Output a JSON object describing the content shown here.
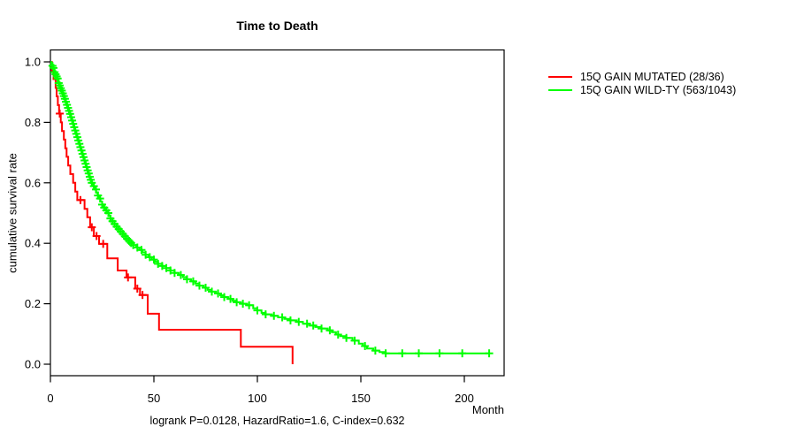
{
  "chart_data": {
    "type": "line",
    "chart_kind": "kaplan-meier-survival",
    "title": "Time to Death",
    "xlabel": "Month",
    "ylabel": "cumulative survival rate",
    "caption": "logrank P=0.0128, HazardRatio=1.6, C-index=0.632",
    "x_ticks": [
      "0",
      "50",
      "100",
      "150",
      "200"
    ],
    "y_ticks": [
      "0.0",
      "0.2",
      "0.4",
      "0.6",
      "0.8",
      "1.0"
    ],
    "xlim": [
      0,
      219
    ],
    "ylim": [
      0,
      1
    ],
    "grid": false,
    "legend_position": "right-outside",
    "legend": [
      {
        "label": "15Q GAIN MUTATED (28/36)",
        "color": "#ff0000"
      },
      {
        "label": "15Q GAIN WILD-TY (563/1043)",
        "color": "#00ff00"
      }
    ],
    "series": [
      {
        "name": "15Q GAIN MUTATED (28/36)",
        "color": "#ff0000",
        "steps": [
          [
            0,
            1.0
          ],
          [
            0.7,
            0.971
          ],
          [
            1.5,
            0.943
          ],
          [
            2.5,
            0.914
          ],
          [
            3,
            0.886
          ],
          [
            3.6,
            0.857
          ],
          [
            4.2,
            0.829
          ],
          [
            5,
            0.8
          ],
          [
            5.6,
            0.771
          ],
          [
            6.5,
            0.743
          ],
          [
            7.2,
            0.714
          ],
          [
            7.8,
            0.686
          ],
          [
            8.6,
            0.657
          ],
          [
            9.6,
            0.629
          ],
          [
            11,
            0.6
          ],
          [
            12,
            0.571
          ],
          [
            13,
            0.543
          ],
          [
            16.5,
            0.514
          ],
          [
            17.8,
            0.486
          ],
          [
            19.2,
            0.453
          ],
          [
            21,
            0.424
          ],
          [
            23.5,
            0.398
          ],
          [
            27.5,
            0.35
          ],
          [
            32.5,
            0.31
          ],
          [
            36.8,
            0.287
          ],
          [
            41,
            0.25
          ],
          [
            43.3,
            0.229
          ],
          [
            47,
            0.167
          ],
          [
            52.5,
            0.114
          ],
          [
            92,
            0.058
          ],
          [
            117,
            0
          ]
        ],
        "censor_times": [
          4.5,
          14.5,
          20,
          22.3,
          25.5,
          37.5,
          42,
          44.5
        ]
      },
      {
        "name": "15Q GAIN WILD-TY (563/1043)",
        "color": "#00ff00",
        "steps": [
          [
            0,
            1
          ],
          [
            0.4,
            0.993
          ],
          [
            0.8,
            0.987
          ],
          [
            1.2,
            0.98
          ],
          [
            1.6,
            0.973
          ],
          [
            2,
            0.966
          ],
          [
            2.4,
            0.959
          ],
          [
            2.8,
            0.952
          ],
          [
            3.2,
            0.945
          ],
          [
            3.6,
            0.938
          ],
          [
            4,
            0.93
          ],
          [
            4.5,
            0.922
          ],
          [
            5,
            0.913
          ],
          [
            5.5,
            0.905
          ],
          [
            6,
            0.896
          ],
          [
            6.5,
            0.887
          ],
          [
            7,
            0.878
          ],
          [
            7.5,
            0.868
          ],
          [
            8,
            0.858
          ],
          [
            8.5,
            0.848
          ],
          [
            9,
            0.838
          ],
          [
            9.5,
            0.828
          ],
          [
            10,
            0.817
          ],
          [
            10.5,
            0.806
          ],
          [
            11,
            0.795
          ],
          [
            11.5,
            0.784
          ],
          [
            12,
            0.773
          ],
          [
            12.5,
            0.762
          ],
          [
            13,
            0.751
          ],
          [
            13.5,
            0.74
          ],
          [
            14,
            0.729
          ],
          [
            14.5,
            0.718
          ],
          [
            15,
            0.707
          ],
          [
            15.5,
            0.696
          ],
          [
            16,
            0.685
          ],
          [
            16.5,
            0.674
          ],
          [
            17,
            0.663
          ],
          [
            17.5,
            0.652
          ],
          [
            18,
            0.641
          ],
          [
            18.5,
            0.631
          ],
          [
            19,
            0.62
          ],
          [
            19.5,
            0.61
          ],
          [
            20,
            0.6
          ],
          [
            20.7,
            0.589
          ],
          [
            21.4,
            0.578
          ],
          [
            22.1,
            0.568
          ],
          [
            22.8,
            0.558
          ],
          [
            23.5,
            0.548
          ],
          [
            24.2,
            0.538
          ],
          [
            25,
            0.528
          ],
          [
            25.8,
            0.518
          ],
          [
            26.6,
            0.509
          ],
          [
            27.4,
            0.5
          ],
          [
            28.2,
            0.491
          ],
          [
            29,
            0.482
          ],
          [
            30,
            0.473
          ],
          [
            31,
            0.464
          ],
          [
            32,
            0.455
          ],
          [
            33,
            0.447
          ],
          [
            34,
            0.439
          ],
          [
            35,
            0.431
          ],
          [
            36,
            0.423
          ],
          [
            37,
            0.415
          ],
          [
            38,
            0.408
          ],
          [
            39,
            0.401
          ],
          [
            40,
            0.394
          ],
          [
            41.5,
            0.386
          ],
          [
            43,
            0.378
          ],
          [
            44.5,
            0.37
          ],
          [
            46,
            0.362
          ],
          [
            47.5,
            0.354
          ],
          [
            49,
            0.346
          ],
          [
            50.5,
            0.339
          ],
          [
            52,
            0.332
          ],
          [
            54,
            0.325
          ],
          [
            56,
            0.318
          ],
          [
            58,
            0.31
          ],
          [
            60,
            0.302
          ],
          [
            62,
            0.295
          ],
          [
            64,
            0.288
          ],
          [
            66,
            0.281
          ],
          [
            68,
            0.274
          ],
          [
            70,
            0.267
          ],
          [
            72,
            0.26
          ],
          [
            74,
            0.253
          ],
          [
            76,
            0.246
          ],
          [
            78,
            0.24
          ],
          [
            80,
            0.234
          ],
          [
            82,
            0.228
          ],
          [
            84,
            0.222
          ],
          [
            86,
            0.216
          ],
          [
            88,
            0.21
          ],
          [
            90,
            0.205
          ],
          [
            92,
            0.2
          ],
          [
            95,
            0.195
          ],
          [
            98,
            0.185
          ],
          [
            100,
            0.178
          ],
          [
            102,
            0.17
          ],
          [
            104,
            0.165
          ],
          [
            107,
            0.16
          ],
          [
            110,
            0.155
          ],
          [
            113,
            0.15
          ],
          [
            116,
            0.145
          ],
          [
            119,
            0.14
          ],
          [
            122,
            0.134
          ],
          [
            125,
            0.128
          ],
          [
            128,
            0.123
          ],
          [
            131,
            0.118
          ],
          [
            134,
            0.112
          ],
          [
            136,
            0.106
          ],
          [
            138,
            0.098
          ],
          [
            140,
            0.093
          ],
          [
            143,
            0.087
          ],
          [
            146,
            0.078
          ],
          [
            149,
            0.068
          ],
          [
            151,
            0.06
          ],
          [
            153,
            0.052
          ],
          [
            156,
            0.045
          ],
          [
            159,
            0.04
          ],
          [
            162,
            0.036
          ],
          [
            212,
            0.036
          ]
        ],
        "censor_times": [
          1,
          1.5,
          2,
          2.5,
          3,
          3.5,
          4,
          4.5,
          5,
          5.5,
          6,
          6.5,
          7,
          7.5,
          8,
          8.5,
          9,
          9.5,
          10,
          10.5,
          11,
          11.5,
          12,
          12.5,
          13,
          13.5,
          14,
          14.5,
          15,
          15.5,
          16,
          16.5,
          17,
          17.5,
          18,
          18.5,
          19,
          19.5,
          20,
          21,
          22,
          23,
          24,
          25,
          26,
          27,
          28,
          29,
          30,
          31,
          32,
          33,
          34,
          35,
          36,
          37,
          38,
          39,
          40,
          42,
          44,
          46,
          48,
          50,
          52,
          54,
          56,
          58,
          60,
          63,
          66,
          69,
          72,
          75,
          78,
          81,
          84,
          87,
          90,
          93,
          96,
          100,
          104,
          108,
          112,
          116,
          120,
          124,
          127,
          131,
          135,
          139,
          143,
          147,
          152,
          157,
          162,
          170,
          178,
          188,
          199,
          212
        ]
      }
    ]
  }
}
